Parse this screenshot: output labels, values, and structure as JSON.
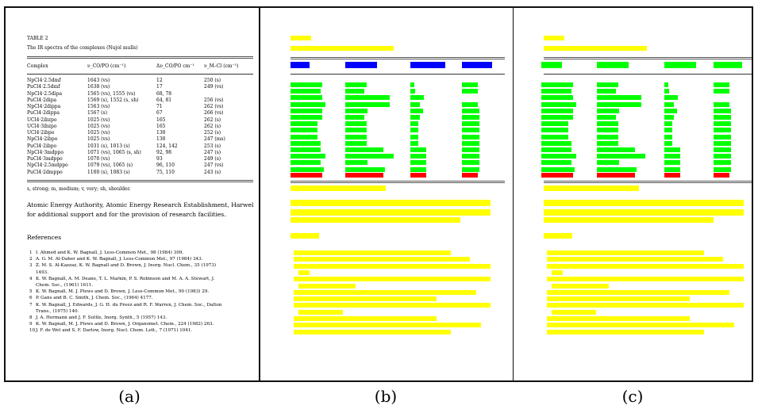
{
  "captions": [
    "(a)",
    "(b)",
    "(c)"
  ],
  "colors": {
    "text_block": "#ffff00",
    "header_cell": "#0000ff",
    "body_cell": "#00ff00",
    "last_row_cell": "#ff0000"
  },
  "doc": {
    "table_label": "TABLE 2",
    "table_caption": "The IR spectra of the complexes (Nujol mulls)",
    "headers": [
      "Complex",
      "ν_CO/PO (cm⁻¹)",
      "Δν_CO/PO cm⁻¹",
      "ν_M–Cl (cm⁻¹)"
    ],
    "rows": [
      [
        "NpCl4·2.5dmf",
        "1643 (vs)",
        "12",
        "250 (s)"
      ],
      [
        "PuCl4·2.5dmf",
        "1638 (vs)",
        "17",
        "249 (vs)"
      ],
      [
        "NpCl4·2.5dipa",
        "1565 (vs), 1555 (vs)",
        "68, 78",
        ""
      ],
      [
        "PuCl4·2dipa",
        "1569 (s), 1552 (s, sh)",
        "64, 81",
        "256 (vs)"
      ],
      [
        "NpCl4·2dippa",
        "1563 (vs)",
        "71",
        "262 (vs)"
      ],
      [
        "PuCl4·2dippa",
        "1567 (s)",
        "67",
        "266 (vs)"
      ],
      [
        "UCl4·2ibzpo",
        "1025 (vs)",
        "165",
        "262 (s)"
      ],
      [
        "UCl4·3ibzpo",
        "1025 (vs)",
        "165",
        "262 (s)"
      ],
      [
        "UCl4·2ibpo",
        "1025 (vs)",
        "130",
        "252 (s)"
      ],
      [
        "NpCl4·2ibpo",
        "1025 (vs)",
        "130",
        "247 (ms)"
      ],
      [
        "PuCl4·2ibpo",
        "1031 (s), 1013 (s)",
        "124, 142",
        "253 (s)"
      ],
      [
        "NpCl4·3mdppo",
        "1071 (vs), 1065 (s, sh)",
        "92, 98",
        "247 (s)"
      ],
      [
        "PuCl4·3mdppo",
        "1070 (vs)",
        "93",
        "249 (s)"
      ],
      [
        "NpCl4·2.5mdppo",
        "1079 (vs), 1065 (s)",
        "96, 110",
        "247 (vs)"
      ],
      [
        "PuCl4·2dmppo",
        "1100 (s), 1083 (s)",
        "75, 110",
        "243 (s)"
      ]
    ],
    "footnote": "s, strong; m, medium; v, very; sh, shoulder.",
    "ack_lines": [
      "Atomic Energy Authority, Atomic Energy Research Establishment, Harwel",
      "for additional support and for the provision of research facilities."
    ],
    "ref_heading": "References",
    "refs": [
      {
        "num": "1",
        "lines": [
          "I. Ahmed and K. W. Bagnall, J. Less-Common Met., 98 (1984) 309."
        ]
      },
      {
        "num": "2",
        "lines": [
          "A. G. M. Al-Daher and K. W. Bagnall, J. Less-Common Met., 97 (1984) 343."
        ]
      },
      {
        "num": "3",
        "lines": [
          "Z. M. S. Al-Kazzaz, K. W. Bagnall and D. Brown, J. Inorg. Nucl. Chem., 35 (1973)",
          "1493."
        ]
      },
      {
        "num": "4",
        "lines": [
          "K. W. Bagnall, A. M. Deane, T. L. Markin, P. S. Robinson and M. A. A. Stewart, J.",
          "Chem. Soc., (1961) 1611."
        ]
      },
      {
        "num": "5",
        "lines": [
          "K. W. Bagnall, M. J. Plews and D. Brown, J. Less-Common Met., 90 (1983) 29."
        ]
      },
      {
        "num": "6",
        "lines": [
          "P. Gans and B. C. Smith, J. Chem. Soc., (1964) 4177."
        ]
      },
      {
        "num": "7",
        "lines": [
          "K. W. Bagnall, J. Edwards, J. G. H. du Preez and R. F. Warren, J. Chem. Soc., Dalton",
          "Trans., (1975) 140."
        ]
      },
      {
        "num": "8",
        "lines": [
          "J. A. Hermann and J. F. Suttle, Inorg. Synth., 5 (1957) 143."
        ]
      },
      {
        "num": "9",
        "lines": [
          "K. W. Bagnall, M. J. Plews and D. Brown, J. Organomet. Chem., 224 (1982) 263."
        ]
      },
      {
        "num": "10",
        "lines": [
          "J. F. de Wet and S. F. Darlow, Inorg. Nucl. Chem. Lett., 7 (1971) 1041."
        ]
      }
    ]
  }
}
